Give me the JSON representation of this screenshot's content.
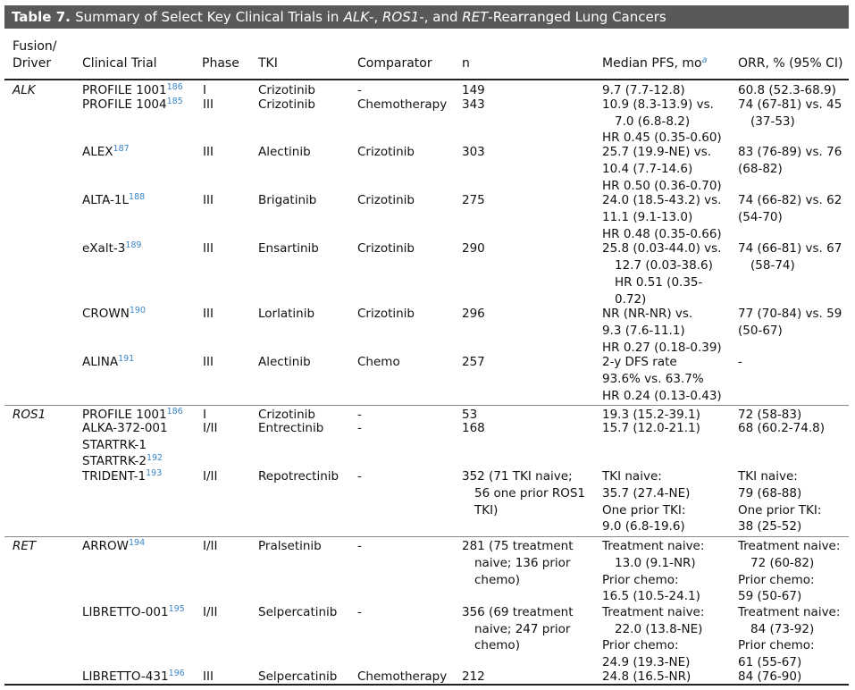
{
  "table": {
    "title_prefix": "Table 7.",
    "title_text": "Summary of Select Key Clinical Trials in",
    "title_alk": "ALK",
    "title_ros1": "ROS1",
    "title_ret": "RET",
    "title_suffix": "-Rearranged Lung Cancers",
    "sep1": "-, ",
    "sep2": "-, and "
  },
  "headers": {
    "fusion": [
      "Fusion/",
      "Driver"
    ],
    "trial": "Clinical Trial",
    "phase": "Phase",
    "tki": "TKI",
    "comparator": "Comparator",
    "n": "n",
    "pfs": "Median PFS, mo",
    "pfs_sup": "a",
    "orr": "ORR, % (95% CI)"
  },
  "groups": {
    "alk": "ALK",
    "ros1": "ROS1",
    "ret": "RET"
  },
  "rows": [
    {
      "trial": "PROFILE 1001",
      "ref": "186",
      "phase": "I",
      "tki": "Crizotinib",
      "comp": "-",
      "n": [
        "149"
      ],
      "pfs": [
        "9.7 (7.7-12.8)"
      ],
      "orr": [
        "60.8 (52.3-68.9)"
      ]
    },
    {
      "trial": "PROFILE 1004",
      "ref": "185",
      "phase": "III",
      "tki": "Crizotinib",
      "comp": "Chemotherapy",
      "n": [
        "343"
      ],
      "pfs": [
        "10.9 (8.3-13.9) vs.",
        "7.0 (6.8-8.2)",
        "HR 0.45 (0.35-0.60)"
      ],
      "orr": [
        "74 (67-81) vs. 45",
        "(37-53)"
      ]
    },
    {
      "trial": "ALEX",
      "ref": "187",
      "phase": "III",
      "tki": "Alectinib",
      "comp": "Crizotinib",
      "n": [
        "303"
      ],
      "pfs": [
        "25.7 (19.9-NE) vs.",
        "10.4 (7.7-14.6)",
        "HR 0.50 (0.36-0.70)"
      ],
      "orr": [
        "83 (76-89) vs. 76",
        "(68-82)"
      ]
    },
    {
      "trial": "ALTA-1L",
      "ref": "188",
      "phase": "III",
      "tki": "Brigatinib",
      "comp": "Crizotinib",
      "n": [
        "275"
      ],
      "pfs": [
        "24.0 (18.5-43.2) vs.",
        "11.1 (9.1-13.0)",
        "HR 0.48 (0.35-0.66)"
      ],
      "orr": [
        "74 (66-82) vs. 62",
        "(54-70)"
      ]
    },
    {
      "trial": "eXalt-3",
      "ref": "189",
      "phase": "III",
      "tki": "Ensartinib",
      "comp": "Crizotinib",
      "n": [
        "290"
      ],
      "pfs": [
        "25.8 (0.03-44.0) vs.",
        "12.7 (0.03-38.6)",
        "HR 0.51 (0.35-",
        "0.72)"
      ],
      "orr": [
        "74 (66-81) vs. 67",
        "(58-74)"
      ]
    },
    {
      "trial": "CROWN",
      "ref": "190",
      "phase": "III",
      "tki": "Lorlatinib",
      "comp": "Crizotinib",
      "n": [
        "296"
      ],
      "pfs": [
        "NR (NR-NR) vs.",
        "9.3 (7.6-11.1)",
        "HR 0.27 (0.18-0.39)"
      ],
      "orr": [
        "77 (70-84) vs. 59",
        "(50-67)"
      ]
    },
    {
      "trial": "ALINA",
      "ref": "191",
      "phase": "III",
      "tki": "Alectinib",
      "comp": "Chemo",
      "n": [
        "257"
      ],
      "pfs": [
        "2-y DFS rate",
        "93.6% vs. 63.7%",
        "HR 0.24 (0.13-0.43)"
      ],
      "orr": [
        "-"
      ]
    },
    {
      "trial": "PROFILE 1001",
      "ref": "186",
      "phase": "I",
      "tki": "Crizotinib",
      "comp": "-",
      "n": [
        "53"
      ],
      "pfs": [
        "19.3 (15.2-39.1)"
      ],
      "orr": [
        "72 (58-83)"
      ]
    },
    {
      "trial": "ALKA-372-001",
      "trial2": "STARTRK-1",
      "trial3": "STARTRK-2",
      "ref": "192",
      "phase": "I/II",
      "tki": "Entrectinib",
      "comp": "-",
      "n": [
        "168"
      ],
      "pfs": [
        "15.7 (12.0-21.1)"
      ],
      "orr": [
        "68 (60.2-74.8)"
      ]
    },
    {
      "trial": "TRIDENT-1",
      "ref": "193",
      "phase": "I/II",
      "tki": "Repotrectinib",
      "comp": "-",
      "n": [
        "352 (71 TKI naive;",
        "56 one prior ROS1",
        "TKI)"
      ],
      "pfs": [
        "TKI naive:",
        "35.7 (27.4-NE)",
        "One prior TKI:",
        "9.0 (6.8-19.6)"
      ],
      "orr": [
        "TKI naive:",
        "79 (68-88)",
        "One prior TKI:",
        "38 (25-52)"
      ]
    },
    {
      "trial": "ARROW",
      "ref": "194",
      "phase": "I/II",
      "tki": "Pralsetinib",
      "comp": "-",
      "n": [
        "281 (75 treatment",
        "naive; 136 prior",
        "chemo)"
      ],
      "pfs": [
        "Treatment naive:",
        "13.0 (9.1-NR)",
        "Prior chemo:",
        "16.5 (10.5-24.1)"
      ],
      "orr": [
        "Treatment naive:",
        "72 (60-82)",
        "Prior chemo:",
        "59 (50-67)"
      ]
    },
    {
      "trial": "LIBRETTO-001",
      "ref": "195",
      "phase": "I/II",
      "tki": "Selpercatinib",
      "comp": "-",
      "n": [
        "356 (69 treatment",
        "naive; 247 prior",
        "chemo)"
      ],
      "pfs": [
        "Treatment naive:",
        "22.0 (13.8-NE)",
        "Prior chemo:",
        "24.9 (19.3-NE)"
      ],
      "orr": [
        "Treatment naive:",
        "84 (73-92)",
        "Prior chemo:",
        "61 (55-67)"
      ]
    },
    {
      "trial": "LIBRETTO-431",
      "ref": "196",
      "phase": "III",
      "tki": "Selpercatinib",
      "comp": "Chemotherapy",
      "n": [
        "212"
      ],
      "pfs": [
        "24.8 (16.5-NR)"
      ],
      "orr": [
        "84 (76-90)"
      ]
    }
  ]
}
